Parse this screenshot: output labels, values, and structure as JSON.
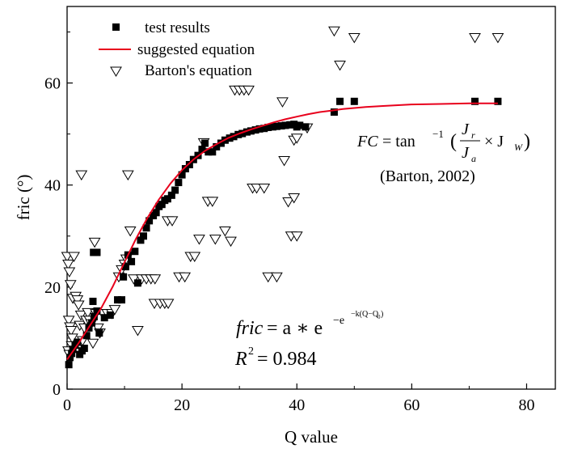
{
  "chart_data": {
    "type": "scatter",
    "xlabel": "Q value",
    "ylabel": "fric (°)",
    "xlim": [
      0,
      85
    ],
    "ylim": [
      0,
      75
    ],
    "xticks": [
      0,
      20,
      40,
      60,
      80
    ],
    "yticks": [
      0,
      20,
      40,
      60
    ],
    "grid": false,
    "legend_position": "top-left",
    "series": [
      {
        "name": "test results",
        "kind": "scatter",
        "marker": "filled-square",
        "color": "#000000",
        "points": [
          [
            0.3,
            4.8
          ],
          [
            0.5,
            6.2
          ],
          [
            0.8,
            7.0
          ],
          [
            1.0,
            7.8
          ],
          [
            1.4,
            8.6
          ],
          [
            1.8,
            9.2
          ],
          [
            2.2,
            6.8
          ],
          [
            2.6,
            7.5
          ],
          [
            3.0,
            8.0
          ],
          [
            3.4,
            10.5
          ],
          [
            3.8,
            12.0
          ],
          [
            4.3,
            13.0
          ],
          [
            4.7,
            14.2
          ],
          [
            5.2,
            15.3
          ],
          [
            4.5,
            17.2
          ],
          [
            4.6,
            26.8
          ],
          [
            5.2,
            26.8
          ],
          [
            5.6,
            11.0
          ],
          [
            6.5,
            14.0
          ],
          [
            7.5,
            14.5
          ],
          [
            8.8,
            17.5
          ],
          [
            9.5,
            17.5
          ],
          [
            9.8,
            22.0
          ],
          [
            10.2,
            24.0
          ],
          [
            10.6,
            26.3
          ],
          [
            11.2,
            25.0
          ],
          [
            11.8,
            27.0
          ],
          [
            12.3,
            20.8
          ],
          [
            12.8,
            29.2
          ],
          [
            13.3,
            30.0
          ],
          [
            13.8,
            31.6
          ],
          [
            14.3,
            33.0
          ],
          [
            15.0,
            34.0
          ],
          [
            15.5,
            34.6
          ],
          [
            16.0,
            35.8
          ],
          [
            16.5,
            36.2
          ],
          [
            17.0,
            37.0
          ],
          [
            17.5,
            37.3
          ],
          [
            18.2,
            38.0
          ],
          [
            18.8,
            39.0
          ],
          [
            19.4,
            40.5
          ],
          [
            20.0,
            42.0
          ],
          [
            20.6,
            43.2
          ],
          [
            21.3,
            44.0
          ],
          [
            22.0,
            45.0
          ],
          [
            22.8,
            45.8
          ],
          [
            23.5,
            47.0
          ],
          [
            24.0,
            48.2
          ],
          [
            24.6,
            46.5
          ],
          [
            25.3,
            46.5
          ],
          [
            26.0,
            47.5
          ],
          [
            26.8,
            48.2
          ],
          [
            27.5,
            48.8
          ],
          [
            28.3,
            49.2
          ],
          [
            29.0,
            49.5
          ],
          [
            29.8,
            49.9
          ],
          [
            30.5,
            50.1
          ],
          [
            31.3,
            50.4
          ],
          [
            32.0,
            50.6
          ],
          [
            32.8,
            50.8
          ],
          [
            33.5,
            51.0
          ],
          [
            34.3,
            51.1
          ],
          [
            35.0,
            51.3
          ],
          [
            35.8,
            51.4
          ],
          [
            36.5,
            51.5
          ],
          [
            37.3,
            51.6
          ],
          [
            38.0,
            51.7
          ],
          [
            38.8,
            51.8
          ],
          [
            39.5,
            51.9
          ],
          [
            40.0,
            51.4
          ],
          [
            40.5,
            51.7
          ],
          [
            41.5,
            51.4
          ],
          [
            46.5,
            54.3
          ],
          [
            47.5,
            56.4
          ],
          [
            50.0,
            56.4
          ],
          [
            71.0,
            56.4
          ],
          [
            75.0,
            56.4
          ]
        ]
      },
      {
        "name": "suggested equation",
        "kind": "line",
        "color": "#e8001c",
        "x": [
          0,
          2,
          4,
          6,
          8,
          10,
          12,
          14,
          16,
          18,
          20,
          22,
          24,
          26,
          28,
          30,
          32,
          34,
          36,
          38,
          40,
          42,
          44,
          46,
          48,
          50,
          52,
          55,
          60,
          65,
          70,
          75
        ],
        "values": [
          5.8,
          9.0,
          12.5,
          16.0,
          20.2,
          24.9,
          29.5,
          33.6,
          37.2,
          40.3,
          42.9,
          45.0,
          46.7,
          48.0,
          49.2,
          50.1,
          50.9,
          51.6,
          52.3,
          52.9,
          53.4,
          53.9,
          54.3,
          54.6,
          54.9,
          55.1,
          55.3,
          55.5,
          55.8,
          55.9,
          56.0,
          56.0
        ]
      },
      {
        "name": "Barton's equation",
        "kind": "scatter",
        "marker": "open-triangle-down",
        "color": "#000000",
        "points": [
          [
            0.0,
            26.0
          ],
          [
            0.2,
            24.5
          ],
          [
            0.4,
            23.0
          ],
          [
            0.6,
            20.5
          ],
          [
            0.3,
            13.5
          ],
          [
            0.5,
            12.2
          ],
          [
            0.7,
            11.5
          ],
          [
            0.9,
            10.0
          ],
          [
            0.2,
            7.5
          ],
          [
            0.4,
            6.8
          ],
          [
            0.8,
            8.5
          ],
          [
            1.0,
            17.8
          ],
          [
            1.2,
            26.0
          ],
          [
            1.5,
            18.2
          ],
          [
            1.8,
            17.5
          ],
          [
            2.0,
            16.5
          ],
          [
            2.2,
            12.5
          ],
          [
            2.4,
            14.5
          ],
          [
            2.5,
            42.0
          ],
          [
            2.7,
            9.5
          ],
          [
            3.0,
            12.0
          ],
          [
            3.3,
            13.5
          ],
          [
            3.6,
            15.0
          ],
          [
            3.9,
            13.5
          ],
          [
            4.2,
            12.8
          ],
          [
            4.5,
            9.0
          ],
          [
            4.8,
            28.8
          ],
          [
            5.0,
            14.8
          ],
          [
            5.4,
            12.0
          ],
          [
            5.7,
            11.0
          ],
          [
            6.2,
            14.8
          ],
          [
            7.0,
            14.8
          ],
          [
            7.8,
            14.8
          ],
          [
            8.3,
            15.6
          ],
          [
            9.0,
            22.0
          ],
          [
            9.5,
            23.4
          ],
          [
            10.0,
            24.5
          ],
          [
            10.3,
            25.5
          ],
          [
            10.6,
            42.0
          ],
          [
            11.0,
            31.0
          ],
          [
            11.6,
            21.6
          ],
          [
            12.3,
            11.5
          ],
          [
            13.0,
            21.6
          ],
          [
            13.8,
            21.6
          ],
          [
            14.6,
            21.6
          ],
          [
            15.3,
            21.6
          ],
          [
            15.2,
            16.8
          ],
          [
            16.2,
            16.8
          ],
          [
            17.0,
            16.8
          ],
          [
            17.6,
            16.8
          ],
          [
            17.5,
            33.0
          ],
          [
            18.3,
            33.0
          ],
          [
            19.5,
            22.0
          ],
          [
            20.5,
            22.0
          ],
          [
            21.5,
            26.0
          ],
          [
            22.2,
            26.0
          ],
          [
            23.0,
            29.4
          ],
          [
            23.8,
            48.3
          ],
          [
            24.5,
            36.8
          ],
          [
            25.3,
            36.8
          ],
          [
            25.8,
            29.4
          ],
          [
            27.5,
            31.0
          ],
          [
            28.5,
            29.0
          ],
          [
            29.2,
            58.6
          ],
          [
            30.0,
            58.6
          ],
          [
            30.8,
            58.6
          ],
          [
            31.6,
            58.6
          ],
          [
            32.3,
            39.4
          ],
          [
            33.0,
            39.4
          ],
          [
            34.3,
            39.4
          ],
          [
            35.0,
            22.0
          ],
          [
            36.5,
            22.0
          ],
          [
            37.5,
            56.3
          ],
          [
            37.8,
            44.8
          ],
          [
            38.5,
            36.7
          ],
          [
            39.5,
            37.5
          ],
          [
            39.0,
            30.0
          ],
          [
            40.0,
            30.0
          ],
          [
            39.5,
            48.8
          ],
          [
            40.0,
            49.2
          ],
          [
            41.8,
            51.2
          ],
          [
            46.5,
            70.2
          ],
          [
            47.5,
            63.5
          ],
          [
            50.0,
            68.9
          ],
          [
            71.0,
            68.9
          ],
          [
            75.0,
            68.9
          ]
        ]
      }
    ],
    "annotations": {
      "barton_formula": {
        "lhs": "FC",
        "eq": " = tan",
        "sup": "−1",
        "open": "(",
        "num": "J",
        "num_sub": "r",
        "den": "J",
        "den_sub": "a",
        "times": "× J",
        "times_sub": "W",
        "close": ")"
      },
      "barton_citation": "(Barton, 2002)",
      "fit_formula": {
        "lhs": "fric",
        "rhs": " = a ∗ e",
        "exp1": "−e",
        "exp2": "−k(Q−Q",
        "exp2_sub": "0",
        "exp2_end": ")"
      },
      "r_squared": {
        "label": "R",
        "sup": "2",
        "value": " = 0.984"
      }
    }
  }
}
